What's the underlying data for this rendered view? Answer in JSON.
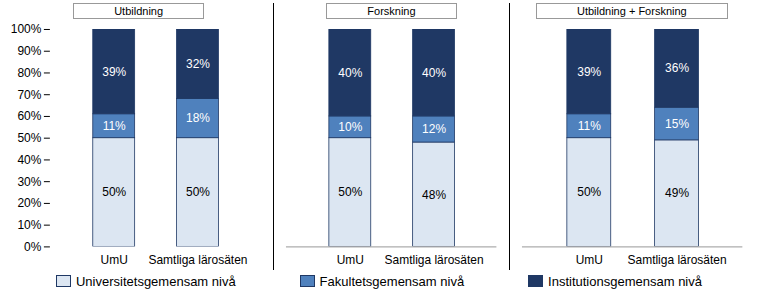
{
  "chart_data": [
    {
      "type": "bar",
      "title": "Utbildning",
      "stacked": true,
      "data_labels": true,
      "legend": "bottom",
      "categories": [
        "UmU",
        "Samtliga lärosäten"
      ],
      "series": [
        {
          "name": "Universitetsgemensam nivå",
          "color": "#dce6f2",
          "values": [
            50,
            50
          ],
          "value_labels": [
            "50%",
            "50%"
          ]
        },
        {
          "name": "Fakultetsgemensam nivå",
          "color": "#4f81bd",
          "values": [
            11,
            18
          ],
          "value_labels": [
            "11%",
            "18%"
          ]
        },
        {
          "name": "Institutionsgemensam nivå",
          "color": "#1f3864",
          "values": [
            39,
            32
          ],
          "value_labels": [
            "39%",
            "32%"
          ]
        }
      ],
      "ylim": [
        0,
        100
      ],
      "yticks": [
        {
          "value": 0,
          "label": "0%"
        },
        {
          "value": 10,
          "label": "10%"
        },
        {
          "value": 20,
          "label": "20%"
        },
        {
          "value": 30,
          "label": "30%"
        },
        {
          "value": 40,
          "label": "40%"
        },
        {
          "value": 50,
          "label": "50%"
        },
        {
          "value": 60,
          "label": "60%"
        },
        {
          "value": 70,
          "label": "70%"
        },
        {
          "value": 80,
          "label": "80%"
        },
        {
          "value": 90,
          "label": "90%"
        },
        {
          "value": 100,
          "label": "100%"
        }
      ]
    },
    {
      "type": "bar",
      "title": "Forskning",
      "stacked": true,
      "data_labels": true,
      "tick_labels": "x",
      "categories": [
        "UmU",
        "Samtliga lärosäten"
      ],
      "series": [
        {
          "name": "Universitetsgemensam nivå",
          "color": "#dce6f2",
          "values": [
            50,
            48
          ],
          "value_labels": [
            "50%",
            "48%"
          ]
        },
        {
          "name": "Fakultetsgemensam nivå",
          "color": "#4f81bd",
          "values": [
            10,
            12
          ],
          "value_labels": [
            "10%",
            "12%"
          ]
        },
        {
          "name": "Institutionsgemensam nivå",
          "color": "#1f3864",
          "values": [
            40,
            40
          ],
          "value_labels": [
            "40%",
            "40%"
          ]
        }
      ],
      "ylim": [
        0,
        100
      ]
    },
    {
      "type": "bar",
      "title": "Utbildning + Forskning",
      "stacked": true,
      "data_labels": true,
      "tick_labels": "x",
      "categories": [
        "UmU",
        "Samtliga lärosäten"
      ],
      "series": [
        {
          "name": "Universitetsgemensam nivå",
          "color": "#dce6f2",
          "values": [
            50,
            49
          ],
          "value_labels": [
            "50%",
            "49%"
          ]
        },
        {
          "name": "Fakultetsgemensam nivå",
          "color": "#4f81bd",
          "values": [
            11,
            15
          ],
          "value_labels": [
            "11%",
            "15%"
          ]
        },
        {
          "name": "Institutionsgemensam nivå",
          "color": "#1f3864",
          "values": [
            39,
            36
          ],
          "value_labels": [
            "39%",
            "36%"
          ]
        }
      ],
      "ylim": [
        0,
        100
      ]
    }
  ]
}
